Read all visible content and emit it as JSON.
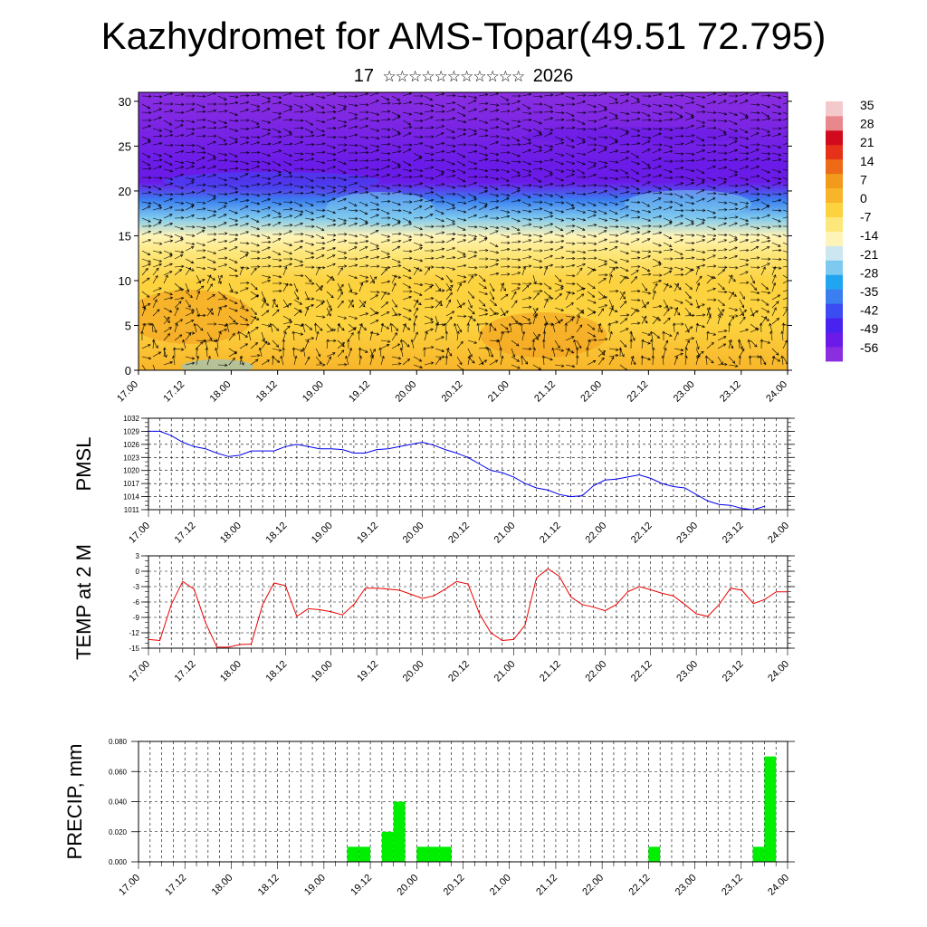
{
  "title": "Kazhydromet for AMS-Topar(49.51 72.795)",
  "subtitle": {
    "day": "17",
    "month": "☆☆☆☆☆☆☆☆☆☆☆",
    "year": "2026"
  },
  "chart_data": [
    {
      "type": "heatmap",
      "name": "temperature-wind cross-section",
      "x_labels": [
        "17.00",
        "17.12",
        "18.00",
        "18.12",
        "19.00",
        "19.12",
        "20.00",
        "20.12",
        "21.00",
        "21.12",
        "22.00",
        "22.12",
        "23.00",
        "23.12",
        "24.00"
      ],
      "y_ticks": [
        0,
        5,
        10,
        15,
        20,
        25,
        30
      ],
      "ylim": [
        0,
        31
      ],
      "colorbar_labels": [
        "35",
        "28",
        "21",
        "14",
        "7",
        "0",
        "-7",
        "-14",
        "-21",
        "-28",
        "-35",
        "-42",
        "-49",
        "-56"
      ],
      "colorbar_range": [
        -63,
        42
      ],
      "approx_temperature_profile": [
        {
          "height": 0,
          "value": 3
        },
        {
          "height": 5,
          "value": 1
        },
        {
          "height": 10,
          "value": -1
        },
        {
          "height": 13,
          "value": -6
        },
        {
          "height": 15,
          "value": -16
        },
        {
          "height": 17,
          "value": -25
        },
        {
          "height": 19,
          "value": -38
        },
        {
          "height": 21,
          "value": -52
        },
        {
          "height": 23,
          "value": -57
        },
        {
          "height": 31,
          "value": -58
        }
      ],
      "colors": {
        "palette": [
          "#8a2ee0",
          "#6b1be8",
          "#4a22f0",
          "#3b4cf2",
          "#3a7ef0",
          "#22a5f0",
          "#7ec9ef",
          "#cde7f1",
          "#fff4b8",
          "#fde77a",
          "#fcd23f",
          "#f8b52a",
          "#f29a1c",
          "#ed6a16",
          "#e53218",
          "#d20a1e",
          "#e8888c",
          "#f4c9cc"
        ]
      },
      "wind_arrows": "vector field overlay"
    },
    {
      "type": "line",
      "name": "PMSL",
      "ylabel": "PMSL",
      "y_ticks": [
        1011,
        1014,
        1017,
        1020,
        1023,
        1026,
        1029,
        1032
      ],
      "ylim": [
        1011,
        1032
      ],
      "x_labels": [
        "17.00",
        "17.12",
        "18.00",
        "18.12",
        "19.00",
        "19.12",
        "20.00",
        "20.12",
        "21.00",
        "21.12",
        "22.00",
        "22.12",
        "23.00",
        "23.12",
        "24.00"
      ],
      "x_step_hours": 3,
      "values": [
        1029,
        1029,
        1028,
        1026.5,
        1025.5,
        1025,
        1024,
        1023.2,
        1023.5,
        1024.5,
        1024.5,
        1024.5,
        1025.5,
        1026,
        1025.5,
        1025,
        1025,
        1024.8,
        1024,
        1024,
        1024.8,
        1025,
        1025.5,
        1026,
        1026.5,
        1025.8,
        1024.8,
        1024,
        1023,
        1021.5,
        1020,
        1019.5,
        1018.5,
        1017,
        1016,
        1015.5,
        1014.5,
        1014,
        1014.2,
        1016.5,
        1017.8,
        1018,
        1018.5,
        1019,
        1018.2,
        1017,
        1016.3,
        1016,
        1014.5,
        1013,
        1012.2,
        1012,
        1011.3,
        1011,
        1011.8
      ],
      "color": "#0000ee"
    },
    {
      "type": "line",
      "name": "TEMP at 2 M",
      "ylabel": "TEMP at 2 M",
      "y_ticks": [
        -15,
        -12,
        -9,
        -6,
        -3,
        0,
        3
      ],
      "ylim": [
        -15,
        3
      ],
      "x_labels": [
        "17.00",
        "17.12",
        "18.00",
        "18.12",
        "19.00",
        "19.12",
        "20.00",
        "20.12",
        "21.00",
        "21.12",
        "22.00",
        "22.12",
        "23.00",
        "23.12",
        "24.00"
      ],
      "x_step_hours": 3,
      "values": [
        -13.3,
        -13.5,
        -6.5,
        -2,
        -3.5,
        -10,
        -14.8,
        -14.8,
        -14.3,
        -14.2,
        -6.5,
        -2.3,
        -2.8,
        -8.8,
        -7.3,
        -7.5,
        -7.9,
        -8.5,
        -6.5,
        -3.3,
        -3.3,
        -3.5,
        -3.7,
        -4.5,
        -5.3,
        -4.8,
        -3.5,
        -2,
        -2.5,
        -8.3,
        -12,
        -13.5,
        -13.3,
        -10.5,
        -1.3,
        0.5,
        -1,
        -5,
        -6.5,
        -7,
        -7.7,
        -6.5,
        -4,
        -3,
        -3.6,
        -4.3,
        -4.8,
        -6.5,
        -8.3,
        -8.8,
        -6.5,
        -3.3,
        -3.7,
        -6.3,
        -5.5,
        -4,
        -4
      ]
    },
    {
      "type": "bar",
      "name": "PRECIP, mm",
      "ylabel": "PRECIP, mm",
      "y_ticks": [
        "0.000",
        "0.020",
        "0.040",
        "0.060",
        "0.080"
      ],
      "ylim": [
        0,
        0.08
      ],
      "x_labels": [
        "17.00",
        "17.12",
        "18.00",
        "18.12",
        "19.00",
        "19.12",
        "20.00",
        "20.12",
        "21.00",
        "21.12",
        "22.00",
        "22.12",
        "23.00",
        "23.12",
        "24.00"
      ],
      "x_step_hours": 3,
      "bars": [
        {
          "index": 19,
          "value": 0.01
        },
        {
          "index": 20,
          "value": 0.01
        },
        {
          "index": 22,
          "value": 0.02
        },
        {
          "index": 23,
          "value": 0.04
        },
        {
          "index": 25,
          "value": 0.01
        },
        {
          "index": 26,
          "value": 0.01
        },
        {
          "index": 27,
          "value": 0.01
        },
        {
          "index": 45,
          "value": 0.01
        },
        {
          "index": 54,
          "value": 0.01
        },
        {
          "index": 55,
          "value": 0.07
        }
      ],
      "color": "#00ee00"
    }
  ]
}
